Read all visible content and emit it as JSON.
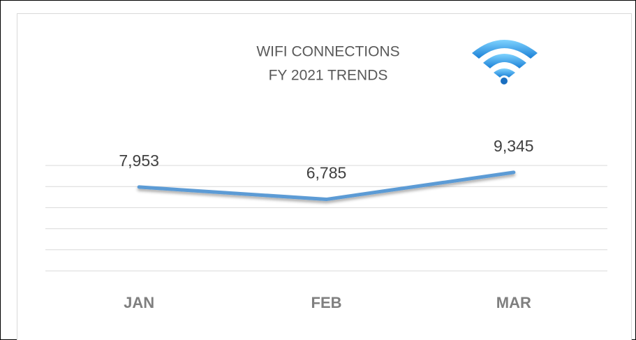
{
  "chart_data": {
    "type": "line",
    "title": "WIFI CONNECTIONS",
    "subtitle": "FY 2021 TRENDS",
    "categories": [
      "JAN",
      "FEB",
      "MAR"
    ],
    "series": [
      {
        "name": "WIFI CONNECTIONS",
        "color": "#5b9bd5",
        "values": [
          7953,
          6785,
          9345
        ],
        "value_labels": [
          "7,953",
          "6,785",
          "9,345"
        ]
      }
    ],
    "ylim": [
      0,
      10000
    ],
    "yticks": [
      0,
      2000,
      4000,
      6000,
      8000,
      10000
    ],
    "grid": true
  }
}
